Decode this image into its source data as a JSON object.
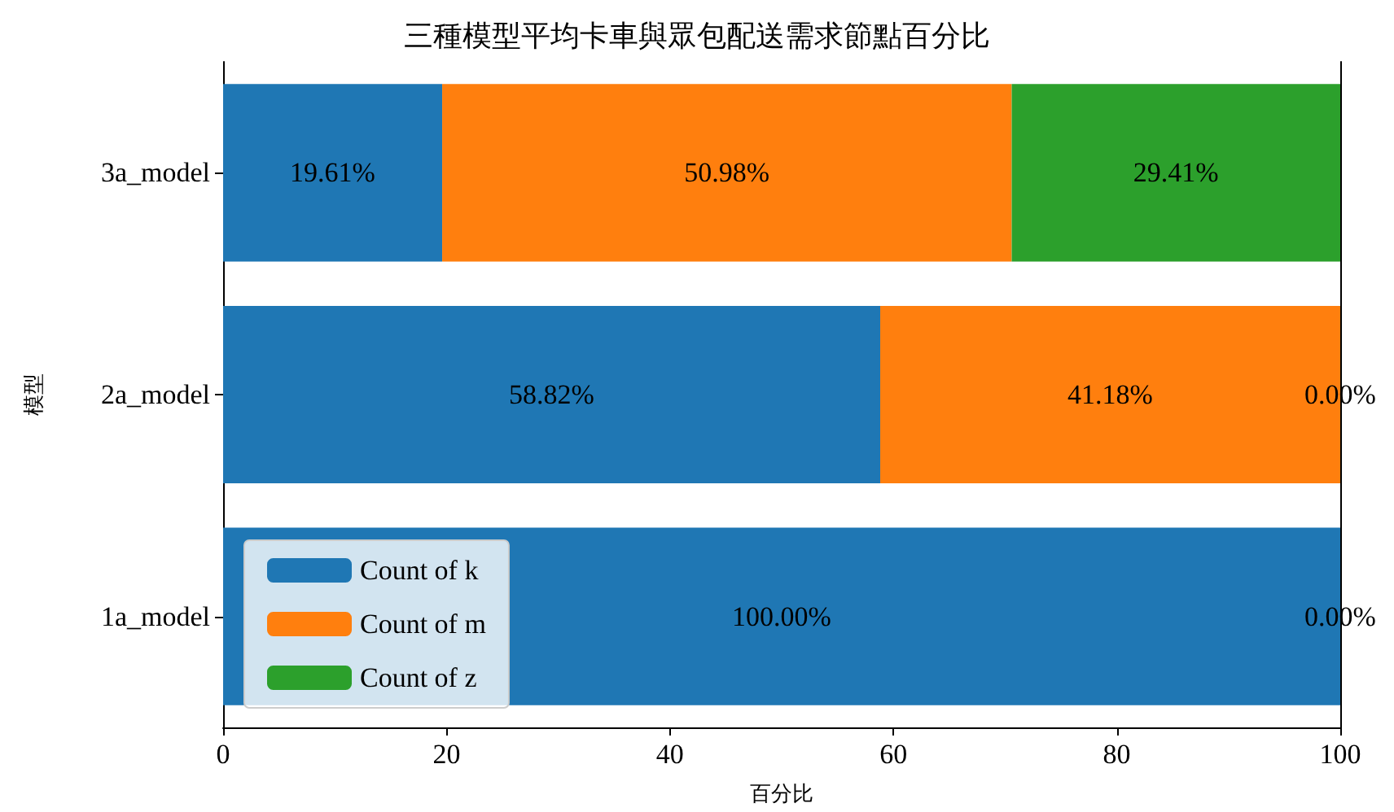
{
  "chart_data": {
    "type": "bar",
    "orientation": "horizontal",
    "stacked": true,
    "title": "三種模型平均卡車與眾包配送需求節點百分比",
    "xlabel": "百分比",
    "ylabel": "模型",
    "categories": [
      "3a_model",
      "2a_model",
      "1a_model"
    ],
    "series": [
      {
        "name": "Count of k",
        "color": "#1f77b4",
        "values": [
          19.61,
          58.82,
          100
        ],
        "value_labels": [
          "19.61%",
          "58.82%",
          "100.00%"
        ]
      },
      {
        "name": "Count of m",
        "color": "#ff7f0e",
        "values": [
          50.98,
          41.18,
          0
        ],
        "value_labels": [
          "50.98%",
          "41.18%",
          null
        ]
      },
      {
        "name": "Count of z",
        "color": "#2ca02c",
        "values": [
          29.41,
          0,
          0
        ],
        "value_labels": [
          "29.41%",
          "0.00%",
          "0.00%"
        ]
      }
    ],
    "xlim": [
      0,
      100
    ],
    "xticks": [
      0,
      20,
      40,
      60,
      80,
      100
    ],
    "legend": "bottom left",
    "grid": false
  }
}
